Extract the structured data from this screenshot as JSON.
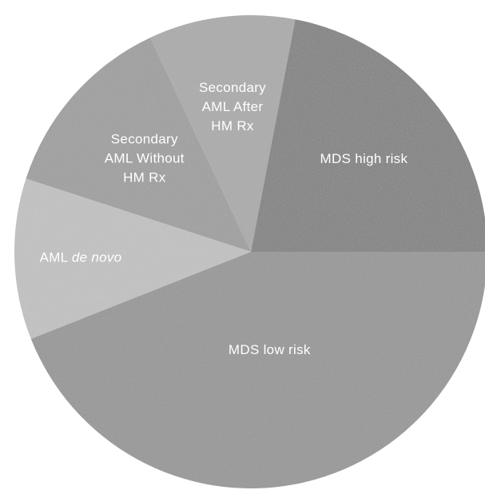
{
  "chart_data": {
    "type": "pie",
    "title": "",
    "legend": "none",
    "slices": [
      {
        "label_lines": [
          "MDS high risk"
        ],
        "value": 22,
        "color": "#858585"
      },
      {
        "label_lines": [
          "Secondary",
          "AML After",
          "HM Rx"
        ],
        "value": 10,
        "color": "#acacac"
      },
      {
        "label_lines": [
          "Secondary",
          "AML Without",
          "HM Rx"
        ],
        "value": 13,
        "color": "#a0a0a0"
      },
      {
        "label_lines": [
          "AML ",
          "de novo"
        ],
        "italic_line": 1,
        "value": 11,
        "color": "#c2c2c2"
      },
      {
        "label_lines": [
          "MDS low risk"
        ],
        "value": 44,
        "color": "#999999"
      }
    ]
  }
}
